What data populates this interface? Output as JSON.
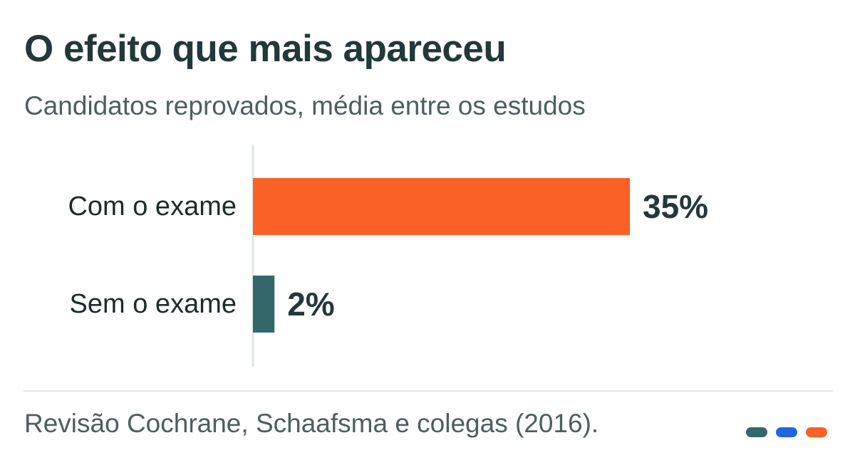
{
  "title": "O efeito que mais apareceu",
  "subtitle": "Candidatos reprovados, média entre os estudos",
  "source": "Revisão Cochrane, Schaafsma e colegas (2016).",
  "colors": {
    "title": "#22383b",
    "muted": "#4d5e5f",
    "orange": "#f96127",
    "teal": "#34676a",
    "blue": "#1f66e0",
    "axis": "#dfe5e4"
  },
  "legend_dots": [
    {
      "color": "#34676a"
    },
    {
      "color": "#1f66e0"
    },
    {
      "color": "#f96127"
    }
  ],
  "chart_data": {
    "type": "bar",
    "orientation": "horizontal",
    "categories": [
      "Com o exame",
      "Sem o exame"
    ],
    "values": [
      35,
      2
    ],
    "value_labels": [
      "35%",
      "2%"
    ],
    "bar_colors": [
      "#f96127",
      "#34676a"
    ],
    "unit": "%",
    "xlim": [
      0,
      35
    ],
    "grid": false
  }
}
